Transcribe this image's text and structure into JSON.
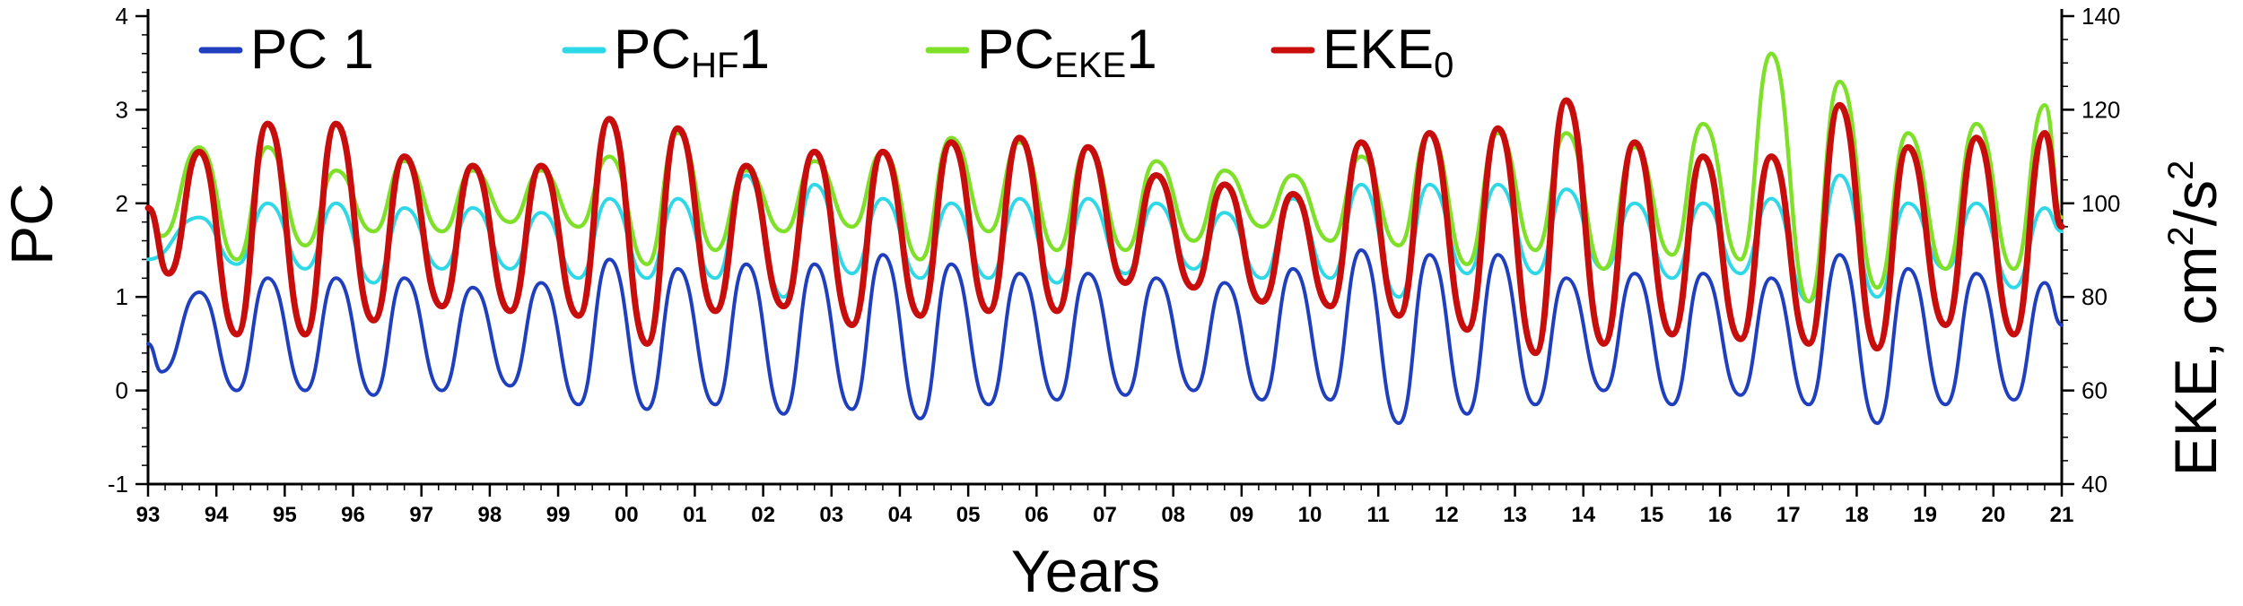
{
  "chart_data": {
    "type": "line",
    "title": "",
    "xlabel": "Years",
    "ylabel_left": "PC",
    "ylabel_right": {
      "main": "EKE, cm",
      "sup1": "2",
      "mid": "/s",
      "sup2": "2"
    },
    "x_ticks": [
      "93",
      "94",
      "95",
      "96",
      "97",
      "98",
      "99",
      "00",
      "01",
      "02",
      "03",
      "04",
      "05",
      "06",
      "07",
      "08",
      "09",
      "10",
      "11",
      "12",
      "13",
      "14",
      "15",
      "16",
      "17",
      "18",
      "19",
      "20",
      "21"
    ],
    "xlim": [
      1993,
      2021
    ],
    "ylim_left": [
      -1,
      4
    ],
    "y_ticks_left": [
      -1,
      0,
      1,
      2,
      3,
      4
    ],
    "ylim_right": [
      40,
      140
    ],
    "y_ticks_right": [
      40,
      60,
      80,
      100,
      120,
      140
    ],
    "grid": false,
    "legend_position": "top-left",
    "series": [
      {
        "name": "PC 1",
        "legend": {
          "base": "PC 1",
          "sub": "",
          "suffix": ""
        },
        "axis": "left",
        "color": "#1f3fbf",
        "sample_x": [
          1993,
          1993.2,
          1993.75,
          1994.3,
          1994.75,
          1995.3,
          1995.75,
          1996.3,
          1996.75,
          1997.3,
          1997.75,
          1998.3,
          1998.75,
          1999.3,
          1999.75,
          2000.3,
          2000.75,
          2001.3,
          2001.75,
          2002.3,
          2002.75,
          2003.3,
          2003.75,
          2004.3,
          2004.75,
          2005.3,
          2005.75,
          2006.3,
          2006.75,
          2007.3,
          2007.75,
          2008.3,
          2008.75,
          2009.3,
          2009.75,
          2010.3,
          2010.75,
          2011.3,
          2011.75,
          2012.3,
          2012.75,
          2013.3,
          2013.75,
          2014.3,
          2014.75,
          2015.3,
          2015.75,
          2016.3,
          2016.75,
          2017.3,
          2017.75,
          2018.3,
          2018.75,
          2019.3,
          2019.75,
          2020.3,
          2020.75,
          2021
        ],
        "values": [
          0.5,
          0.2,
          1.05,
          0.0,
          1.2,
          0.0,
          1.2,
          -0.05,
          1.2,
          0.0,
          1.1,
          0.05,
          1.15,
          -0.15,
          1.4,
          -0.2,
          1.3,
          -0.15,
          1.35,
          -0.25,
          1.35,
          -0.2,
          1.45,
          -0.3,
          1.35,
          -0.15,
          1.25,
          -0.1,
          1.25,
          -0.05,
          1.2,
          0.0,
          1.15,
          -0.1,
          1.3,
          -0.1,
          1.5,
          -0.35,
          1.45,
          -0.25,
          1.45,
          -0.15,
          1.2,
          0.0,
          1.25,
          -0.15,
          1.25,
          -0.05,
          1.2,
          -0.15,
          1.45,
          -0.35,
          1.3,
          -0.15,
          1.25,
          -0.1,
          1.15,
          0.7
        ]
      },
      {
        "name": "PC_HF 1",
        "legend": {
          "base": "PC",
          "sub": "HF",
          "suffix": "1"
        },
        "axis": "left",
        "color": "#2ed8e6",
        "sample_x": [
          1993,
          1993.75,
          1994.3,
          1994.75,
          1995.3,
          1995.75,
          1996.3,
          1996.75,
          1997.3,
          1997.75,
          1998.3,
          1998.75,
          1999.3,
          1999.75,
          2000.3,
          2000.75,
          2001.3,
          2001.75,
          2002.3,
          2002.75,
          2003.3,
          2003.75,
          2004.3,
          2004.75,
          2005.3,
          2005.75,
          2006.3,
          2006.75,
          2007.3,
          2007.75,
          2008.3,
          2008.75,
          2009.3,
          2009.75,
          2010.3,
          2010.75,
          2011.3,
          2011.75,
          2012.3,
          2012.75,
          2013.3,
          2013.75,
          2014.3,
          2014.75,
          2015.3,
          2015.75,
          2016.3,
          2016.75,
          2017.3,
          2017.75,
          2018.3,
          2018.75,
          2019.3,
          2019.75,
          2020.3,
          2020.75,
          2021
        ],
        "values": [
          1.4,
          1.85,
          1.35,
          2.0,
          1.3,
          2.0,
          1.15,
          1.95,
          1.3,
          1.95,
          1.3,
          1.9,
          1.2,
          2.05,
          1.2,
          2.05,
          1.2,
          2.3,
          1.0,
          2.2,
          1.25,
          2.05,
          1.2,
          2.0,
          1.2,
          2.05,
          1.15,
          2.05,
          1.25,
          2.0,
          1.3,
          1.9,
          1.2,
          2.05,
          1.2,
          2.2,
          1.0,
          2.2,
          1.25,
          2.2,
          1.25,
          2.15,
          1.3,
          2.0,
          1.2,
          2.0,
          1.25,
          2.05,
          0.95,
          2.3,
          1.0,
          2.0,
          1.3,
          2.0,
          1.1,
          1.95,
          1.7
        ]
      },
      {
        "name": "PC_EKE 1",
        "legend": {
          "base": "PC",
          "sub": "EKE",
          "suffix": "1"
        },
        "axis": "left",
        "color": "#7fe02a",
        "sample_x": [
          1993,
          1993.2,
          1993.75,
          1994.3,
          1994.75,
          1995.3,
          1995.75,
          1996.3,
          1996.75,
          1997.3,
          1997.75,
          1998.3,
          1998.75,
          1999.3,
          1999.75,
          2000.3,
          2000.75,
          2001.3,
          2001.75,
          2002.3,
          2002.75,
          2003.3,
          2003.75,
          2004.3,
          2004.75,
          2005.3,
          2005.75,
          2006.3,
          2006.75,
          2007.3,
          2007.75,
          2008.3,
          2008.75,
          2009.3,
          2009.75,
          2010.3,
          2010.75,
          2011.3,
          2011.75,
          2012.3,
          2012.75,
          2013.3,
          2013.75,
          2014.3,
          2014.75,
          2015.3,
          2015.75,
          2016.3,
          2016.75,
          2017.3,
          2017.75,
          2018.3,
          2018.75,
          2019.3,
          2019.75,
          2020.3,
          2020.75,
          2021
        ],
        "values": [
          1.95,
          1.65,
          2.6,
          1.4,
          2.6,
          1.55,
          2.35,
          1.7,
          2.45,
          1.7,
          2.35,
          1.8,
          2.35,
          1.75,
          2.5,
          1.35,
          2.75,
          1.5,
          2.35,
          1.7,
          2.45,
          1.75,
          2.55,
          1.4,
          2.7,
          1.7,
          2.65,
          1.5,
          2.6,
          1.5,
          2.45,
          1.6,
          2.35,
          1.75,
          2.3,
          1.6,
          2.5,
          1.55,
          2.75,
          1.35,
          2.75,
          1.5,
          2.75,
          1.3,
          2.6,
          1.45,
          2.85,
          1.4,
          3.6,
          0.95,
          3.3,
          1.1,
          2.75,
          1.3,
          2.85,
          1.3,
          3.05,
          1.85
        ]
      },
      {
        "name": "EKE_0",
        "legend": {
          "base": "EKE",
          "sub": "0",
          "suffix": ""
        },
        "axis": "right",
        "color": "#c80d0d",
        "sample_x": [
          1993,
          1993.3,
          1993.75,
          1994.3,
          1994.75,
          1995.3,
          1995.75,
          1996.3,
          1996.75,
          1997.3,
          1997.75,
          1998.3,
          1998.75,
          1999.3,
          1999.75,
          2000.3,
          2000.75,
          2001.3,
          2001.75,
          2002.3,
          2002.75,
          2003.3,
          2003.75,
          2004.3,
          2004.75,
          2005.3,
          2005.75,
          2006.3,
          2006.75,
          2007.3,
          2007.75,
          2008.3,
          2008.75,
          2009.3,
          2009.75,
          2010.3,
          2010.75,
          2011.3,
          2011.75,
          2012.3,
          2012.75,
          2013.3,
          2013.75,
          2014.3,
          2014.75,
          2015.3,
          2015.75,
          2016.3,
          2016.75,
          2017.3,
          2017.75,
          2018.3,
          2018.75,
          2019.3,
          2019.75,
          2020.3,
          2020.75,
          2021
        ],
        "values": [
          99,
          85,
          111,
          72,
          117,
          72,
          117,
          75,
          110,
          78,
          108,
          77,
          108,
          76,
          118,
          70,
          116,
          77,
          108,
          78,
          111,
          74,
          111,
          76,
          113,
          77,
          114,
          77,
          112,
          83,
          106,
          82,
          104,
          79,
          102,
          78,
          113,
          76,
          115,
          73,
          116,
          68,
          122,
          70,
          113,
          72,
          110,
          71,
          110,
          70,
          121,
          69,
          112,
          74,
          114,
          72,
          115,
          95
        ]
      }
    ]
  }
}
